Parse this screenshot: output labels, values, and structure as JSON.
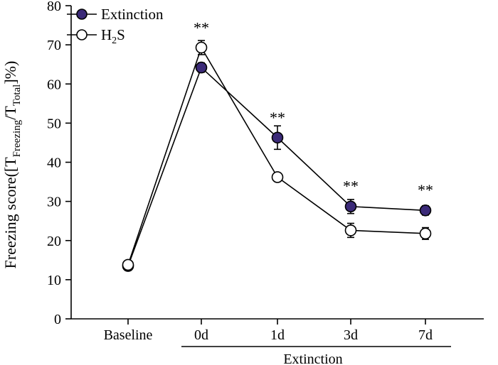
{
  "chart_data": {
    "type": "line",
    "title": "",
    "categories": [
      "Baseline",
      "0d",
      "1d",
      "3d",
      "7d"
    ],
    "group_label": "Extinction",
    "ylabel": {
      "main": "Freezing score([T",
      "sub1": "Freezing",
      "mid": "/T",
      "sub2": "Total",
      "end": "]%)"
    },
    "ylim": [
      0,
      80
    ],
    "yticks": [
      0,
      10,
      20,
      30,
      40,
      50,
      60,
      70,
      80
    ],
    "grid": false,
    "legend_position": "top-left",
    "series": [
      {
        "name": "Extinction",
        "marker": "filled",
        "color": "#3b2a78",
        "values": [
          13.5,
          64.2,
          46.3,
          28.7,
          27.7
        ],
        "errors": [
          0.8,
          1.2,
          3.0,
          1.8,
          1.2
        ]
      },
      {
        "name": "H2S",
        "legend_main": "H",
        "legend_sub": "2",
        "legend_end": "S",
        "marker": "open",
        "color": "#ffffff",
        "values": [
          13.8,
          69.3,
          36.2,
          22.6,
          21.8
        ],
        "errors": [
          0.8,
          1.8,
          1.0,
          1.8,
          1.5
        ]
      }
    ],
    "annotations": [
      {
        "category": "0d",
        "text": "**",
        "y": 74.5
      },
      {
        "category": "1d",
        "text": "**",
        "y": 51.5
      },
      {
        "category": "3d",
        "text": "**",
        "y": 34.0
      },
      {
        "category": "7d",
        "text": "**",
        "y": 33.0
      }
    ]
  }
}
